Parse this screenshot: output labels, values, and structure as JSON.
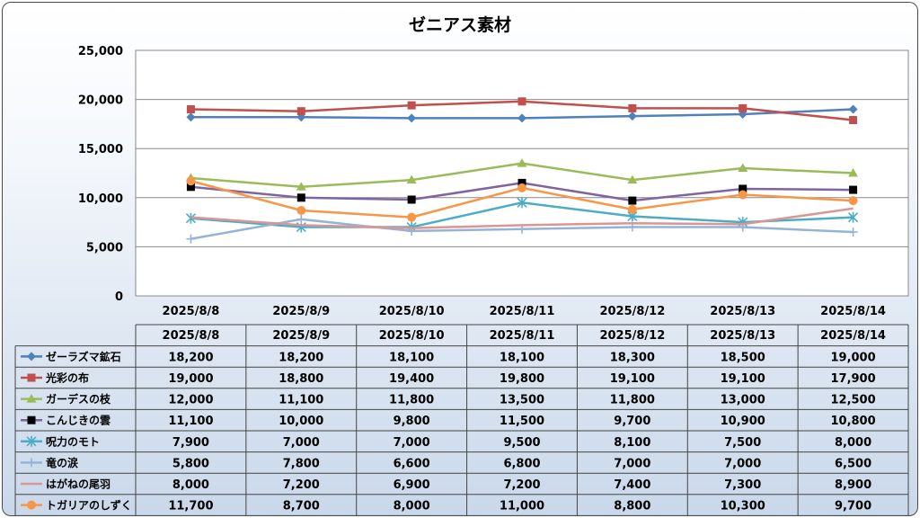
{
  "chart_data": {
    "type": "line",
    "title": "ゼニアス素材",
    "categories": [
      "2025/8/8",
      "2025/8/9",
      "2025/8/10",
      "2025/8/11",
      "2025/8/12",
      "2025/8/13",
      "2025/8/14"
    ],
    "ylim": [
      0,
      25000
    ],
    "yticks": [
      "0",
      "5,000",
      "10,000",
      "15,000",
      "20,000",
      "25,000"
    ],
    "grid": true,
    "legend": "data-table",
    "series": [
      {
        "name": "ゼーラズマ鉱石",
        "color": "#4f81bd",
        "marker": "diamond",
        "values": [
          18200,
          18200,
          18100,
          18100,
          18300,
          18500,
          19000
        ],
        "labels": [
          "18,200",
          "18,200",
          "18,100",
          "18,100",
          "18,300",
          "18,500",
          "19,000"
        ]
      },
      {
        "name": "光彩の布",
        "color": "#c0504d",
        "marker": "square",
        "values": [
          19000,
          18800,
          19400,
          19800,
          19100,
          19100,
          17900
        ],
        "labels": [
          "19,000",
          "18,800",
          "19,400",
          "19,800",
          "19,100",
          "19,100",
          "17,900"
        ]
      },
      {
        "name": "ガーデスの枝",
        "color": "#9bbb59",
        "marker": "triangle",
        "values": [
          12000,
          11100,
          11800,
          13500,
          11800,
          13000,
          12500
        ],
        "labels": [
          "12,000",
          "11,100",
          "11,800",
          "13,500",
          "11,800",
          "13,000",
          "12,500"
        ]
      },
      {
        "name": "こんじきの雲",
        "color": "#8064a2",
        "marker": "black-square",
        "values": [
          11100,
          10000,
          9800,
          11500,
          9700,
          10900,
          10800
        ],
        "labels": [
          "11,100",
          "10,000",
          "9,800",
          "11,500",
          "9,700",
          "10,900",
          "10,800"
        ]
      },
      {
        "name": "呪力のモト",
        "color": "#4bacc6",
        "marker": "star",
        "values": [
          7900,
          7000,
          7000,
          9500,
          8100,
          7500,
          8000
        ],
        "labels": [
          "7,900",
          "7,000",
          "7,000",
          "9,500",
          "8,100",
          "7,500",
          "8,000"
        ]
      },
      {
        "name": "竜の涙",
        "color": "#95b3d7",
        "marker": "plus",
        "values": [
          5800,
          7800,
          6600,
          6800,
          7000,
          7000,
          6500
        ],
        "labels": [
          "5,800",
          "7,800",
          "6,600",
          "6,800",
          "7,000",
          "7,000",
          "6,500"
        ]
      },
      {
        "name": "はがねの尾羽",
        "color": "#d99694",
        "marker": "none",
        "values": [
          8000,
          7200,
          6900,
          7200,
          7400,
          7300,
          8900
        ],
        "labels": [
          "8,000",
          "7,200",
          "6,900",
          "7,200",
          "7,400",
          "7,300",
          "8,900"
        ]
      },
      {
        "name": "トガリアのしずく",
        "color": "#f79646",
        "marker": "circle",
        "values": [
          11700,
          8700,
          8000,
          11000,
          8800,
          10300,
          9700
        ],
        "labels": [
          "11,700",
          "8,700",
          "8,000",
          "11,000",
          "8,800",
          "10,300",
          "9,700"
        ]
      }
    ]
  }
}
